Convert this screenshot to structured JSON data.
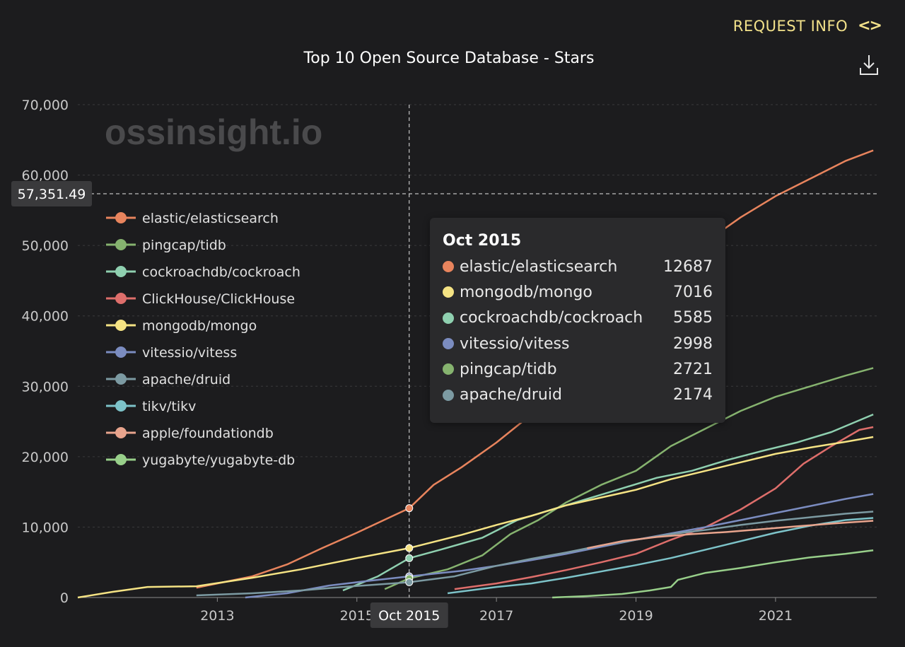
{
  "header": {
    "request_info_label": "REQUEST INFO",
    "code_icon": "code-brackets-icon",
    "download_icon": "download-icon"
  },
  "watermark": "ossinsight.io",
  "chart_data": {
    "type": "line",
    "title": "Top 10 Open Source Database - Stars",
    "xlabel": "",
    "ylabel": "",
    "xlim": [
      2011.0,
      2022.45
    ],
    "ylim": [
      0,
      70000
    ],
    "x_ticks": [
      "2013",
      "2015",
      "2017",
      "2019",
      "2021"
    ],
    "y_ticks": [
      "0",
      "10,000",
      "20,000",
      "30,000",
      "40,000",
      "50,000",
      "60,000",
      "70,000"
    ],
    "grid": true,
    "legend_position": "top-left",
    "crosshair": {
      "x_label": "Oct 2015",
      "x_value": 2015.75,
      "y_label": "57,351.49",
      "y_value": 57351.49
    },
    "series": [
      {
        "name": "elastic/elasticsearch",
        "color": "#e8845d",
        "points": [
          [
            2012.7,
            1400
          ],
          [
            2013.5,
            3000
          ],
          [
            2014.0,
            4700
          ],
          [
            2014.5,
            7000
          ],
          [
            2015.0,
            9200
          ],
          [
            2015.75,
            12687
          ],
          [
            2016.1,
            16000
          ],
          [
            2016.5,
            18500
          ],
          [
            2017.0,
            22000
          ],
          [
            2017.5,
            26000
          ],
          [
            2018.0,
            30000
          ],
          [
            2018.5,
            36000
          ],
          [
            2019.0,
            42000
          ],
          [
            2019.5,
            47000
          ],
          [
            2020.0,
            50500
          ],
          [
            2020.5,
            54000
          ],
          [
            2021.0,
            57000
          ],
          [
            2021.5,
            59500
          ],
          [
            2022.0,
            62000
          ],
          [
            2022.4,
            63500
          ]
        ]
      },
      {
        "name": "pingcap/tidb",
        "color": "#86b36f",
        "points": [
          [
            2015.4,
            1200
          ],
          [
            2015.75,
            2721
          ],
          [
            2016.3,
            4000
          ],
          [
            2016.8,
            6000
          ],
          [
            2017.2,
            9000
          ],
          [
            2017.6,
            11000
          ],
          [
            2018.0,
            13500
          ],
          [
            2018.5,
            16000
          ],
          [
            2019.0,
            18000
          ],
          [
            2019.5,
            21500
          ],
          [
            2020.0,
            24000
          ],
          [
            2020.5,
            26500
          ],
          [
            2021.0,
            28500
          ],
          [
            2021.5,
            30000
          ],
          [
            2022.0,
            31500
          ],
          [
            2022.4,
            32600
          ]
        ]
      },
      {
        "name": "cockroachdb/cockroach",
        "color": "#8fd0b0",
        "points": [
          [
            2014.8,
            1000
          ],
          [
            2015.3,
            3000
          ],
          [
            2015.75,
            5585
          ],
          [
            2016.2,
            6800
          ],
          [
            2016.8,
            8500
          ],
          [
            2017.3,
            11000
          ],
          [
            2017.8,
            12500
          ],
          [
            2018.3,
            14000
          ],
          [
            2018.8,
            15500
          ],
          [
            2019.3,
            17000
          ],
          [
            2019.8,
            18000
          ],
          [
            2020.3,
            19500
          ],
          [
            2020.8,
            20800
          ],
          [
            2021.3,
            22000
          ],
          [
            2021.8,
            23500
          ],
          [
            2022.4,
            26000
          ]
        ]
      },
      {
        "name": "ClickHouse/ClickHouse",
        "color": "#de6e6b",
        "points": [
          [
            2016.4,
            1200
          ],
          [
            2017.0,
            2000
          ],
          [
            2017.5,
            2900
          ],
          [
            2018.0,
            3900
          ],
          [
            2018.5,
            5000
          ],
          [
            2019.0,
            6200
          ],
          [
            2019.5,
            8200
          ],
          [
            2020.0,
            10000
          ],
          [
            2020.5,
            12500
          ],
          [
            2021.0,
            15500
          ],
          [
            2021.4,
            19000
          ],
          [
            2021.8,
            21500
          ],
          [
            2022.2,
            23800
          ],
          [
            2022.4,
            24200
          ]
        ]
      },
      {
        "name": "mongodb/mongo",
        "color": "#f5e384",
        "points": [
          [
            2011.0,
            0
          ],
          [
            2011.5,
            800
          ],
          [
            2012.0,
            1500
          ],
          [
            2012.7,
            1600
          ],
          [
            2013.5,
            2800
          ],
          [
            2014.2,
            4000
          ],
          [
            2015.0,
            5600
          ],
          [
            2015.75,
            7016
          ],
          [
            2016.5,
            8900
          ],
          [
            2017.0,
            10300
          ],
          [
            2017.5,
            11600
          ],
          [
            2018.0,
            13100
          ],
          [
            2018.5,
            14200
          ],
          [
            2019.0,
            15300
          ],
          [
            2019.5,
            16800
          ],
          [
            2020.0,
            18000
          ],
          [
            2020.5,
            19200
          ],
          [
            2021.0,
            20400
          ],
          [
            2021.5,
            21300
          ],
          [
            2022.0,
            22100
          ],
          [
            2022.4,
            22800
          ]
        ]
      },
      {
        "name": "vitessio/vitess",
        "color": "#7b8cc0",
        "points": [
          [
            2013.4,
            0
          ],
          [
            2014.0,
            600
          ],
          [
            2014.6,
            1700
          ],
          [
            2015.2,
            2400
          ],
          [
            2015.75,
            2998
          ],
          [
            2016.5,
            3800
          ],
          [
            2017.0,
            4500
          ],
          [
            2017.5,
            5300
          ],
          [
            2018.0,
            6200
          ],
          [
            2018.5,
            7200
          ],
          [
            2019.0,
            8200
          ],
          [
            2019.5,
            9100
          ],
          [
            2020.0,
            10000
          ],
          [
            2020.5,
            11000
          ],
          [
            2021.0,
            12000
          ],
          [
            2021.5,
            13000
          ],
          [
            2022.0,
            14000
          ],
          [
            2022.4,
            14700
          ]
        ]
      },
      {
        "name": "apache/druid",
        "color": "#7c9aa2",
        "points": [
          [
            2012.7,
            300
          ],
          [
            2013.5,
            600
          ],
          [
            2014.2,
            1000
          ],
          [
            2014.8,
            1500
          ],
          [
            2015.75,
            2174
          ],
          [
            2016.4,
            3000
          ],
          [
            2017.0,
            4500
          ],
          [
            2017.5,
            5500
          ],
          [
            2018.0,
            6400
          ],
          [
            2018.5,
            7400
          ],
          [
            2019.0,
            8200
          ],
          [
            2019.5,
            9000
          ],
          [
            2020.0,
            9600
          ],
          [
            2020.5,
            10300
          ],
          [
            2021.0,
            10900
          ],
          [
            2021.5,
            11400
          ],
          [
            2022.0,
            11900
          ],
          [
            2022.4,
            12200
          ]
        ]
      },
      {
        "name": "tikv/tikv",
        "color": "#7dc3c9",
        "points": [
          [
            2016.3,
            600
          ],
          [
            2017.0,
            1500
          ],
          [
            2017.5,
            2000
          ],
          [
            2018.0,
            2800
          ],
          [
            2018.5,
            3700
          ],
          [
            2019.0,
            4600
          ],
          [
            2019.5,
            5600
          ],
          [
            2020.0,
            6800
          ],
          [
            2020.5,
            8000
          ],
          [
            2021.0,
            9200
          ],
          [
            2021.5,
            10200
          ],
          [
            2022.0,
            11000
          ],
          [
            2022.4,
            11300
          ]
        ]
      },
      {
        "name": "apple/foundationdb",
        "color": "#e8a48d",
        "points": [
          [
            2018.3,
            7000
          ],
          [
            2018.8,
            8000
          ],
          [
            2019.3,
            8600
          ],
          [
            2019.8,
            9000
          ],
          [
            2020.3,
            9300
          ],
          [
            2020.8,
            9700
          ],
          [
            2021.3,
            10100
          ],
          [
            2021.8,
            10500
          ],
          [
            2022.4,
            10900
          ]
        ]
      },
      {
        "name": "yugabyte/yugabyte-db",
        "color": "#98cf8a",
        "points": [
          [
            2017.8,
            0
          ],
          [
            2018.3,
            200
          ],
          [
            2018.8,
            500
          ],
          [
            2019.2,
            1000
          ],
          [
            2019.5,
            1500
          ],
          [
            2019.6,
            2500
          ],
          [
            2020.0,
            3500
          ],
          [
            2020.5,
            4200
          ],
          [
            2021.0,
            5000
          ],
          [
            2021.5,
            5700
          ],
          [
            2022.0,
            6200
          ],
          [
            2022.4,
            6700
          ]
        ]
      }
    ]
  },
  "tooltip": {
    "title": "Oct 2015",
    "rows": [
      {
        "name": "elastic/elasticsearch",
        "value": "12687",
        "color": "#e8845d"
      },
      {
        "name": "mongodb/mongo",
        "value": "7016",
        "color": "#f5e384"
      },
      {
        "name": "cockroachdb/cockroach",
        "value": "5585",
        "color": "#8fd0b0"
      },
      {
        "name": "vitessio/vitess",
        "value": "2998",
        "color": "#7b8cc0"
      },
      {
        "name": "pingcap/tidb",
        "value": "2721",
        "color": "#86b36f"
      },
      {
        "name": "apache/druid",
        "value": "2174",
        "color": "#7c9aa2"
      }
    ]
  }
}
